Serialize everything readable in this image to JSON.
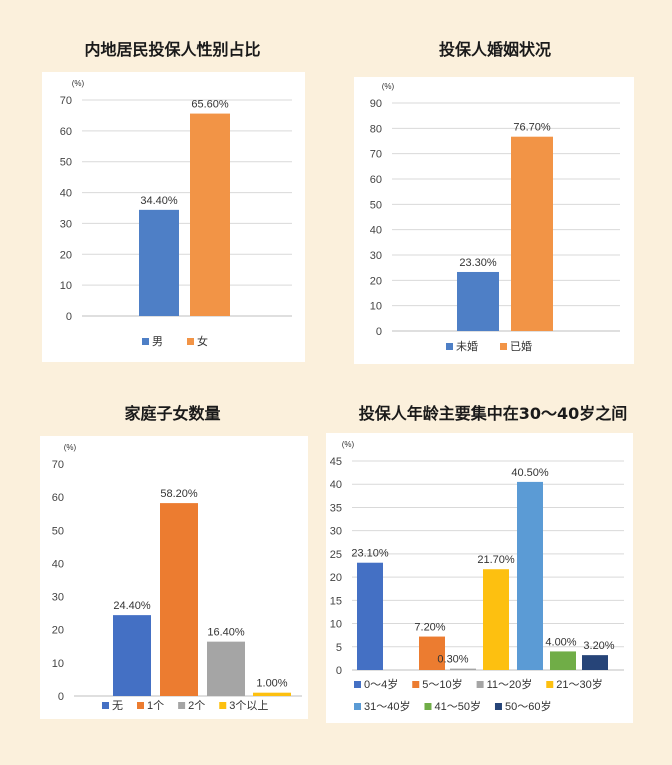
{
  "background": "#fbf0dc",
  "panels": [
    {
      "title": "内地居民投保人性别占比",
      "chart_data": {
        "type": "bar",
        "unit_label": "(%)",
        "categories": [
          "男",
          "女"
        ],
        "values": [
          34.4,
          65.6
        ],
        "data_labels": [
          "34.40%",
          "65.60%"
        ],
        "colors": [
          "#4e7fc6",
          "#f29446"
        ],
        "ylim": [
          0,
          70
        ],
        "yticks": [
          0,
          10,
          20,
          30,
          40,
          50,
          60,
          70
        ],
        "legend": [
          {
            "label": "男",
            "color": "#4e7fc6"
          },
          {
            "label": "女",
            "color": "#f29446"
          }
        ],
        "legend_position": "bottom",
        "grid": true
      }
    },
    {
      "title": "投保人婚姻状况",
      "chart_data": {
        "type": "bar",
        "unit_label": "(%)",
        "categories": [
          "未婚",
          "已婚"
        ],
        "values": [
          23.3,
          76.7
        ],
        "data_labels": [
          "23.30%",
          "76.70%"
        ],
        "colors": [
          "#4e7fc6",
          "#f29446"
        ],
        "ylim": [
          0,
          90
        ],
        "yticks": [
          0,
          10,
          20,
          30,
          40,
          50,
          60,
          70,
          80,
          90
        ],
        "legend": [
          {
            "label": "未婚",
            "color": "#4e7fc6"
          },
          {
            "label": "已婚",
            "color": "#f29446"
          }
        ],
        "legend_position": "bottom",
        "grid": true
      }
    },
    {
      "title": "家庭子女数量",
      "chart_data": {
        "type": "bar",
        "unit_label": "(%)",
        "categories": [
          "无",
          "1个",
          "2个",
          "3个以上"
        ],
        "values": [
          24.4,
          58.2,
          16.4,
          1.0
        ],
        "data_labels": [
          "24.40%",
          "58.20%",
          "16.40%",
          "1.00%"
        ],
        "colors": [
          "#4470c4",
          "#ec7c30",
          "#a5a5a5",
          "#fdc010"
        ],
        "ylim": [
          0,
          70
        ],
        "yticks": [
          0,
          10,
          20,
          30,
          40,
          50,
          60,
          70
        ],
        "legend": [
          {
            "label": "无",
            "color": "#4470c4"
          },
          {
            "label": "1个",
            "color": "#ec7c30"
          },
          {
            "label": "2个",
            "color": "#a5a5a5"
          },
          {
            "label": "3个以上",
            "color": "#fdc010"
          }
        ],
        "legend_position": "bottom",
        "grid": false
      }
    },
    {
      "title": "投保人年龄主要集中在30～40岁之间",
      "chart_data": {
        "type": "bar",
        "unit_label": "(%)",
        "categories": [
          "0～4岁",
          "5～10岁",
          "11～20岁",
          "21～30岁",
          "31～40岁",
          "41～50岁",
          "50～60岁"
        ],
        "values": [
          23.1,
          7.2,
          0.3,
          21.7,
          40.5,
          4.0,
          3.2
        ],
        "data_labels": [
          "23.10%",
          "7.20%",
          "0.30%",
          "21.70%",
          "40.50%",
          "4.00%",
          "3.20%"
        ],
        "colors": [
          "#4470c4",
          "#ec7c30",
          "#a5a5a5",
          "#fdc010",
          "#5b9bd5",
          "#70ad47",
          "#264478"
        ],
        "ylim": [
          0,
          45
        ],
        "yticks": [
          0,
          5,
          10,
          15,
          20,
          25,
          30,
          35,
          40,
          45
        ],
        "legend": [
          {
            "label": "0～4岁",
            "color": "#4470c4"
          },
          {
            "label": "5～10岁",
            "color": "#ec7c30"
          },
          {
            "label": "11～20岁",
            "color": "#a5a5a5"
          },
          {
            "label": "21～30岁",
            "color": "#fdc010"
          },
          {
            "label": "31～40岁",
            "color": "#5b9bd5"
          },
          {
            "label": "41～50岁",
            "color": "#70ad47"
          },
          {
            "label": "50～60岁",
            "color": "#264478"
          }
        ],
        "legend_position": "bottom",
        "grid": true
      }
    }
  ]
}
